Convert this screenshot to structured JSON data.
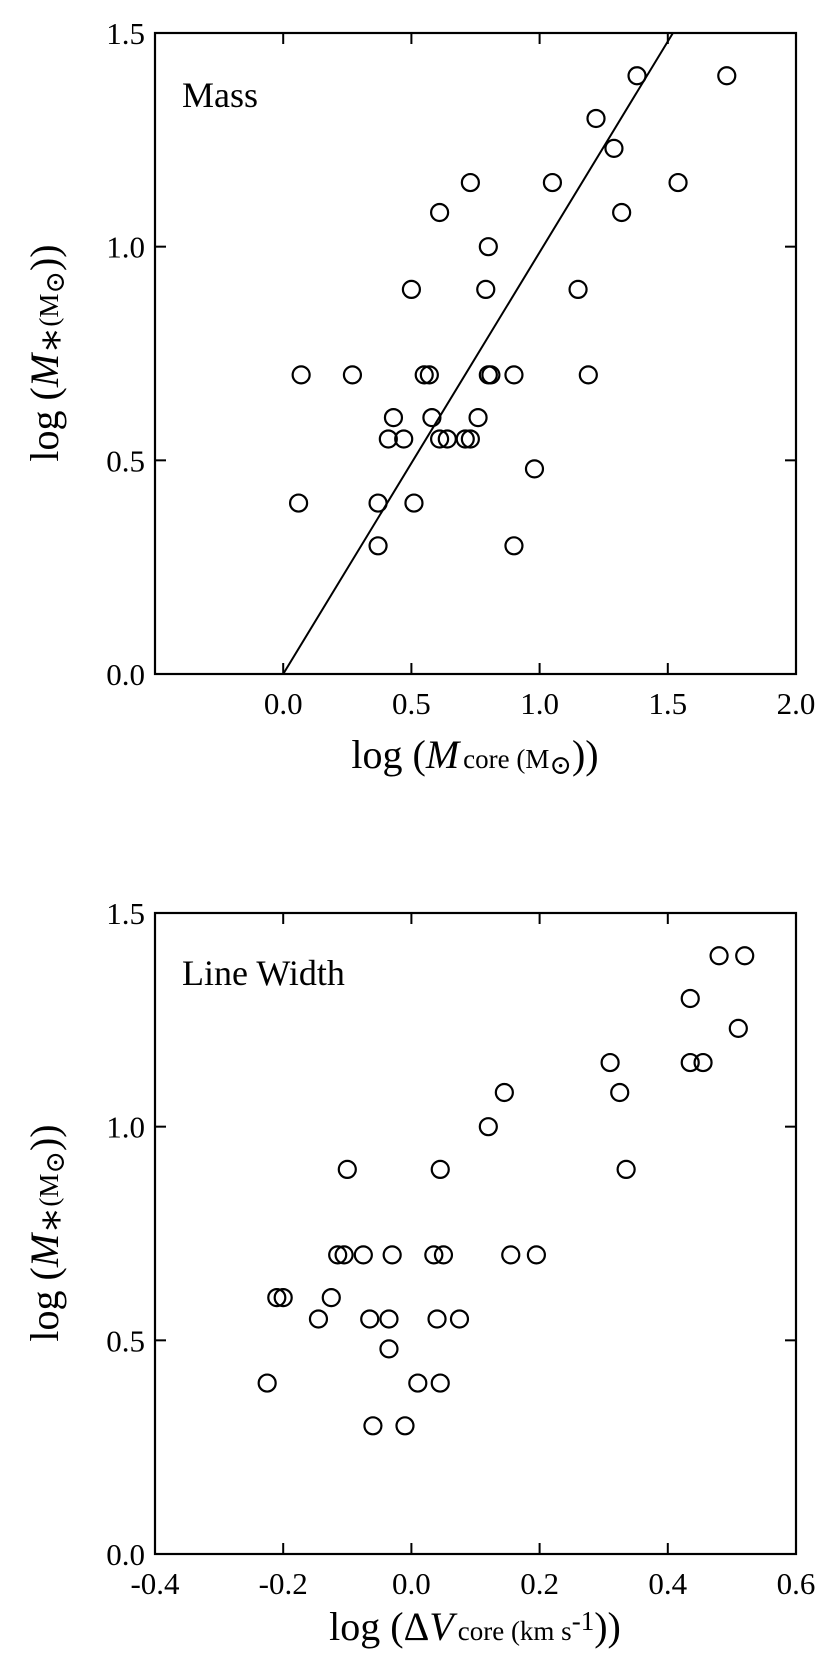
{
  "chart_data": [
    {
      "type": "scatter",
      "panel_label": "Mass",
      "xlabel": "log (M core (M⊙))",
      "ylabel": "log (M∗(M⊙))",
      "xlabel_parts": {
        "prefix": "log (",
        "var": "M",
        "sub": "core (M",
        "sun": "⊙",
        "suffix": "))"
      },
      "ylabel_parts": {
        "prefix": "log (",
        "var": "M",
        "sub": "∗",
        "unit": "(M",
        "sun": "⊙",
        "suffix": "))"
      },
      "xlim": [
        -0.5,
        2.0
      ],
      "ylim": [
        0.0,
        1.5
      ],
      "x_ticks": [
        0.0,
        0.5,
        1.0,
        1.5,
        2.0
      ],
      "x_tick_labels": [
        "0.0",
        "0.5",
        "1.0",
        "1.5",
        "2.0"
      ],
      "y_ticks": [
        0.0,
        0.5,
        1.0,
        1.5
      ],
      "y_tick_labels": [
        "0.0",
        "0.5",
        "1.0",
        "1.5"
      ],
      "grid": false,
      "marker": "open-circle",
      "fit_line": {
        "x": [
          0.0,
          1.52
        ],
        "y": [
          0.0,
          1.5
        ]
      },
      "points": [
        {
          "x": 0.06,
          "y": 0.4
        },
        {
          "x": 0.07,
          "y": 0.7
        },
        {
          "x": 0.27,
          "y": 0.7
        },
        {
          "x": 0.37,
          "y": 0.4
        },
        {
          "x": 0.37,
          "y": 0.3
        },
        {
          "x": 0.41,
          "y": 0.55
        },
        {
          "x": 0.43,
          "y": 0.6
        },
        {
          "x": 0.47,
          "y": 0.55
        },
        {
          "x": 0.5,
          "y": 0.9
        },
        {
          "x": 0.51,
          "y": 0.4
        },
        {
          "x": 0.55,
          "y": 0.7
        },
        {
          "x": 0.57,
          "y": 0.7
        },
        {
          "x": 0.58,
          "y": 0.6
        },
        {
          "x": 0.61,
          "y": 0.55
        },
        {
          "x": 0.61,
          "y": 1.08
        },
        {
          "x": 0.64,
          "y": 0.55
        },
        {
          "x": 0.71,
          "y": 0.55
        },
        {
          "x": 0.73,
          "y": 0.55
        },
        {
          "x": 0.73,
          "y": 1.15
        },
        {
          "x": 0.76,
          "y": 0.6
        },
        {
          "x": 0.79,
          "y": 0.9
        },
        {
          "x": 0.8,
          "y": 1.0
        },
        {
          "x": 0.8,
          "y": 0.7
        },
        {
          "x": 0.81,
          "y": 0.7
        },
        {
          "x": 0.9,
          "y": 0.7
        },
        {
          "x": 0.9,
          "y": 0.3
        },
        {
          "x": 0.98,
          "y": 0.48
        },
        {
          "x": 1.05,
          "y": 1.15
        },
        {
          "x": 1.15,
          "y": 0.9
        },
        {
          "x": 1.19,
          "y": 0.7
        },
        {
          "x": 1.22,
          "y": 1.3
        },
        {
          "x": 1.29,
          "y": 1.23
        },
        {
          "x": 1.32,
          "y": 1.08
        },
        {
          "x": 1.38,
          "y": 1.4
        },
        {
          "x": 1.54,
          "y": 1.15
        },
        {
          "x": 1.73,
          "y": 1.4
        }
      ]
    },
    {
      "type": "scatter",
      "panel_label": "Line Width",
      "xlabel": "log (ΔV core (km s-1))",
      "ylabel": "log (M∗(M⊙))",
      "xlabel_parts": {
        "prefix": "log (Δ",
        "var": "V",
        "sub": "core (km s",
        "sup": "-1",
        "suffix": "))"
      },
      "ylabel_parts": {
        "prefix": "log (",
        "var": "M",
        "sub": "∗",
        "unit": "(M",
        "sun": "⊙",
        "suffix": "))"
      },
      "xlim": [
        -0.4,
        0.6
      ],
      "ylim": [
        0.0,
        1.5
      ],
      "x_ticks": [
        -0.4,
        -0.2,
        0.0,
        0.2,
        0.4,
        0.6
      ],
      "x_tick_labels": [
        "-0.4",
        "-0.2",
        "0.0",
        "0.2",
        "0.4",
        "0.6"
      ],
      "y_ticks": [
        0.0,
        0.5,
        1.0,
        1.5
      ],
      "y_tick_labels": [
        "0.0",
        "0.5",
        "1.0",
        "1.5"
      ],
      "grid": false,
      "marker": "open-circle",
      "points": [
        {
          "x": -0.225,
          "y": 0.4
        },
        {
          "x": -0.21,
          "y": 0.6
        },
        {
          "x": -0.2,
          "y": 0.6
        },
        {
          "x": -0.145,
          "y": 0.55
        },
        {
          "x": -0.125,
          "y": 0.6
        },
        {
          "x": -0.115,
          "y": 0.7
        },
        {
          "x": -0.105,
          "y": 0.7
        },
        {
          "x": -0.1,
          "y": 0.9
        },
        {
          "x": -0.075,
          "y": 0.7
        },
        {
          "x": -0.065,
          "y": 0.55
        },
        {
          "x": -0.06,
          "y": 0.3
        },
        {
          "x": -0.035,
          "y": 0.48
        },
        {
          "x": -0.035,
          "y": 0.55
        },
        {
          "x": -0.03,
          "y": 0.7
        },
        {
          "x": -0.01,
          "y": 0.3
        },
        {
          "x": 0.01,
          "y": 0.4
        },
        {
          "x": 0.035,
          "y": 0.7
        },
        {
          "x": 0.04,
          "y": 0.55
        },
        {
          "x": 0.045,
          "y": 0.4
        },
        {
          "x": 0.045,
          "y": 0.9
        },
        {
          "x": 0.05,
          "y": 0.7
        },
        {
          "x": 0.075,
          "y": 0.55
        },
        {
          "x": 0.12,
          "y": 1.0
        },
        {
          "x": 0.145,
          "y": 1.08
        },
        {
          "x": 0.155,
          "y": 0.7
        },
        {
          "x": 0.195,
          "y": 0.7
        },
        {
          "x": 0.31,
          "y": 1.15
        },
        {
          "x": 0.325,
          "y": 1.08
        },
        {
          "x": 0.335,
          "y": 0.9
        },
        {
          "x": 0.435,
          "y": 1.3
        },
        {
          "x": 0.435,
          "y": 1.15
        },
        {
          "x": 0.455,
          "y": 1.15
        },
        {
          "x": 0.48,
          "y": 1.4
        },
        {
          "x": 0.51,
          "y": 1.23
        },
        {
          "x": 0.52,
          "y": 1.4
        }
      ]
    }
  ]
}
